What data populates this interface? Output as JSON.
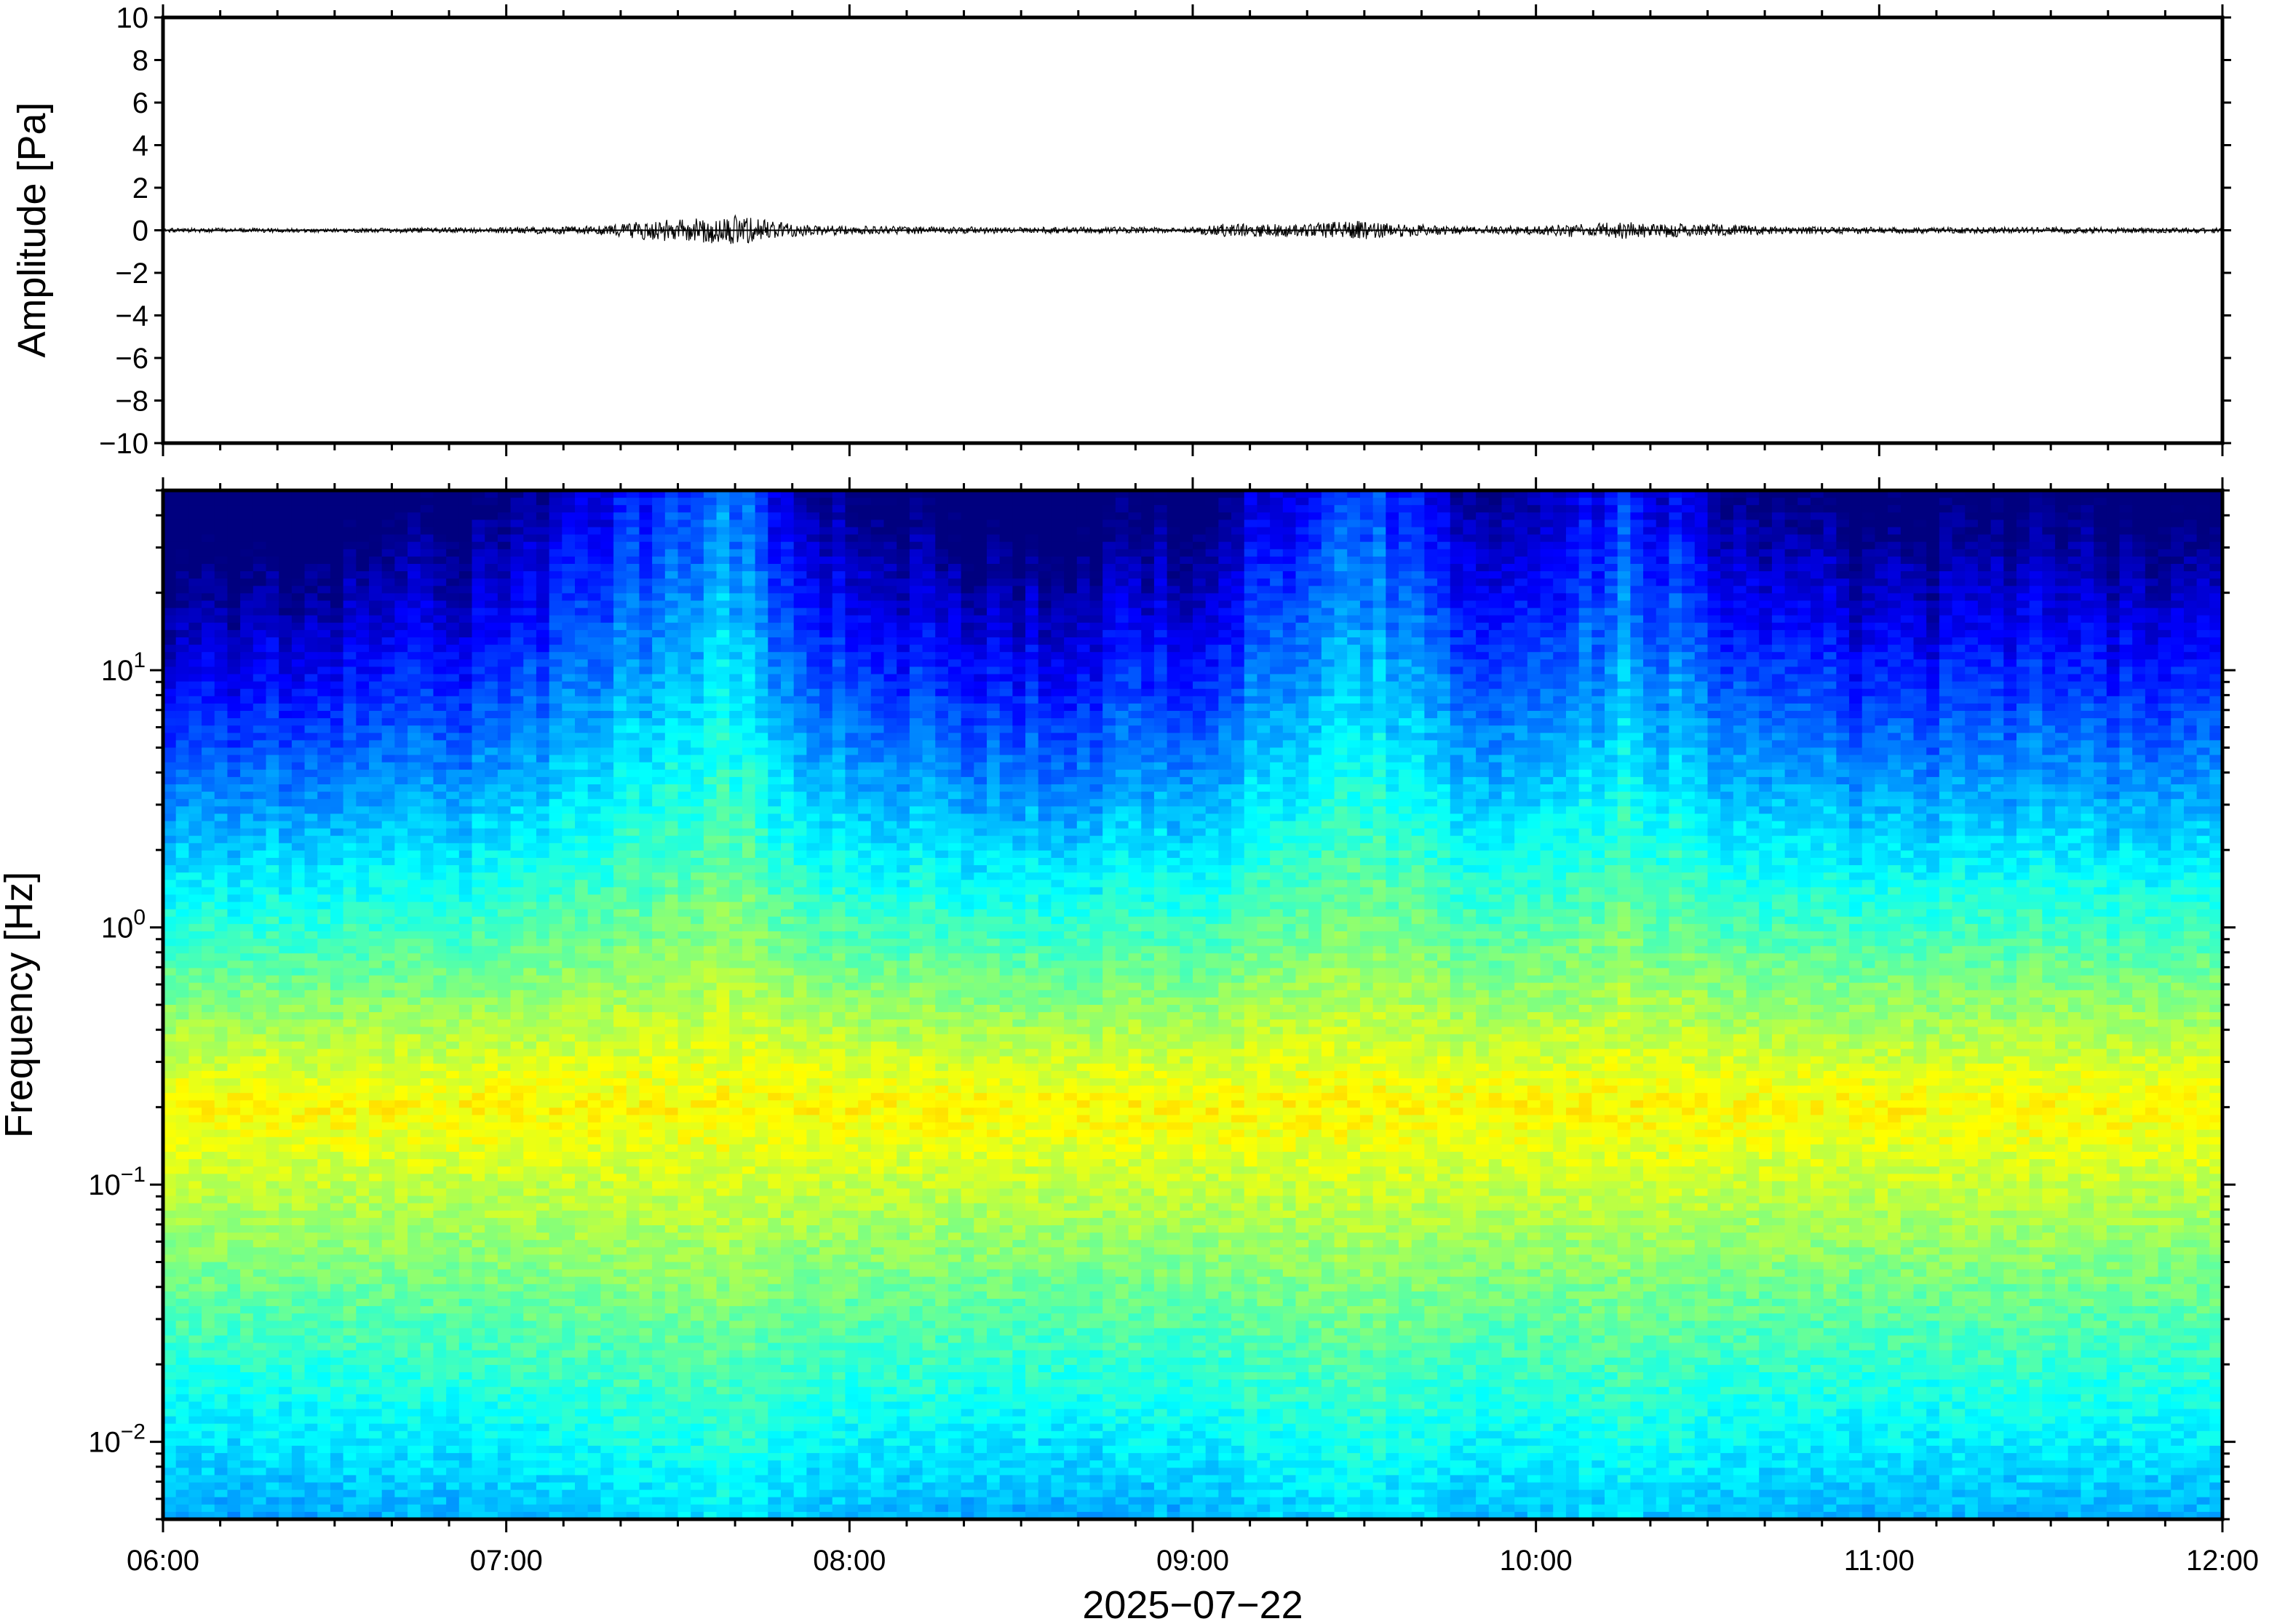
{
  "chart_data": [
    {
      "type": "line",
      "title": "",
      "ylabel": "Amplitude [Pa]",
      "ylim": [
        -10,
        10
      ],
      "yticks": [
        10,
        8,
        6,
        4,
        2,
        0,
        -2,
        -4,
        -6,
        -8,
        -10
      ],
      "ytick_labels": [
        "10",
        "8",
        "6",
        "4",
        "2",
        "0",
        "−2",
        "−4",
        "−6",
        "−8",
        "−10"
      ],
      "xlim": [
        "06:00",
        "12:00"
      ],
      "series": [
        {
          "color": "#000000",
          "envelope_x": [
            "06:00",
            "06:30",
            "07:00",
            "07:15",
            "07:20",
            "07:25",
            "07:30",
            "07:35",
            "07:40",
            "07:45",
            "07:50",
            "08:00",
            "08:30",
            "09:00",
            "09:05",
            "09:20",
            "09:25",
            "09:30",
            "09:35",
            "09:45",
            "10:00",
            "10:05",
            "10:10",
            "10:15",
            "10:20",
            "10:30",
            "10:40",
            "11:00",
            "11:30",
            "12:00"
          ],
          "envelope_amplitude": [
            0.1,
            0.1,
            0.15,
            0.2,
            0.3,
            0.5,
            0.5,
            0.6,
            0.7,
            0.5,
            0.3,
            0.2,
            0.15,
            0.15,
            0.3,
            0.3,
            0.4,
            0.45,
            0.35,
            0.2,
            0.2,
            0.3,
            0.35,
            0.4,
            0.35,
            0.3,
            0.2,
            0.15,
            0.15,
            0.12
          ]
        }
      ]
    },
    {
      "type": "heatmap",
      "title": "",
      "ylabel": "Frequency [Hz]",
      "xlabel": "2025−07−22",
      "yscale": "log",
      "ylim": [
        0.005,
        50
      ],
      "yticks": [
        0.01,
        0.1,
        1,
        10
      ],
      "ytick_labels": [
        {
          "base": "10",
          "exp": "−2"
        },
        {
          "base": "10",
          "exp": "−1"
        },
        {
          "base": "10",
          "exp": "0"
        },
        {
          "base": "10",
          "exp": "1"
        }
      ],
      "xlim": [
        "06:00",
        "12:00"
      ],
      "xticks": [
        "06:00",
        "07:00",
        "08:00",
        "09:00",
        "10:00",
        "11:00",
        "12:00"
      ],
      "colormap": "jet",
      "colormap_colors": [
        "#00007f",
        "#0000ff",
        "#007fff",
        "#00ffff",
        "#7fff7f",
        "#ffff00",
        "#ff7f00",
        "#ff0000"
      ],
      "power_peak_frequency_hz": 0.2,
      "activity_x": [
        "06:00",
        "06:30",
        "07:00",
        "07:20",
        "07:30",
        "07:40",
        "07:50",
        "08:00",
        "08:30",
        "09:00",
        "09:20",
        "09:30",
        "09:40",
        "10:00",
        "10:15",
        "10:30",
        "11:00",
        "11:30",
        "12:00"
      ],
      "activity_level": [
        0.2,
        0.25,
        0.35,
        0.65,
        0.85,
        0.9,
        0.55,
        0.4,
        0.25,
        0.35,
        0.7,
        0.85,
        0.6,
        0.45,
        0.75,
        0.5,
        0.3,
        0.35,
        0.3
      ]
    }
  ]
}
